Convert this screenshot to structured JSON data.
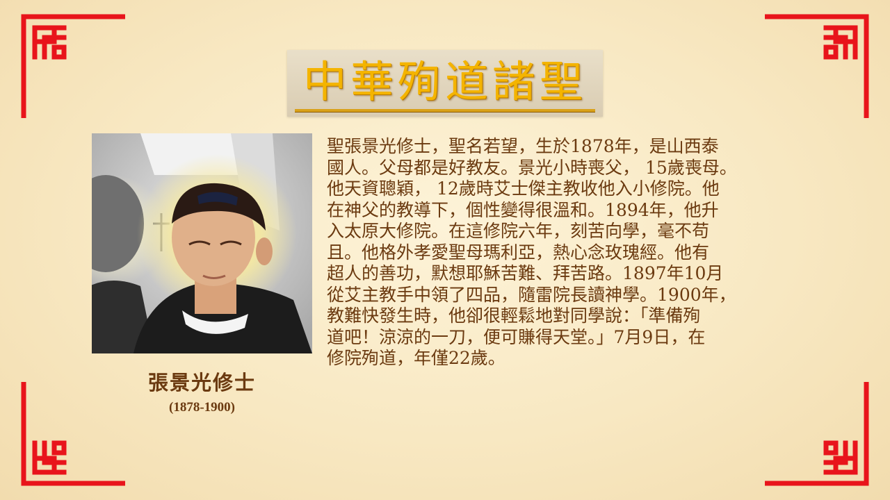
{
  "slide": {
    "title": "中華殉道諸聖",
    "portrait_icon": "saint-portrait-painting",
    "caption": {
      "name": "張景光修士",
      "years": "(1878-1900)"
    },
    "body_lines": [
      "聖張景光修士，聖名若望，生於1878年，是山西泰",
      "國人。父母都是好教友。景光小時喪父， 15歲喪母。",
      "他天資聰穎， 12歲時艾士傑主教收他入小修院。他",
      "在神父的教導下，個性變得很溫和。1894年，他升",
      "入太原大修院。在這修院六年，刻苦向學，毫不苟",
      "且。他格外孝愛聖母瑪利亞，熱心念玫瑰經。他有",
      "超人的善功，默想耶穌苦難、拜苦路。1897年10月",
      "從艾主教手中領了四品，隨雷院長讀神學。1900年，",
      "教難快發生時，他卻很輕鬆地對同學說：「準備殉",
      "道吧！涼涼的一刀，便可賺得天堂。」7月9日，在",
      "修院殉道，年僅22歲。"
    ],
    "colors": {
      "frame_red": "#e8141b",
      "title_gold": "#f4b400",
      "text_brown": "#6b3a10"
    }
  }
}
